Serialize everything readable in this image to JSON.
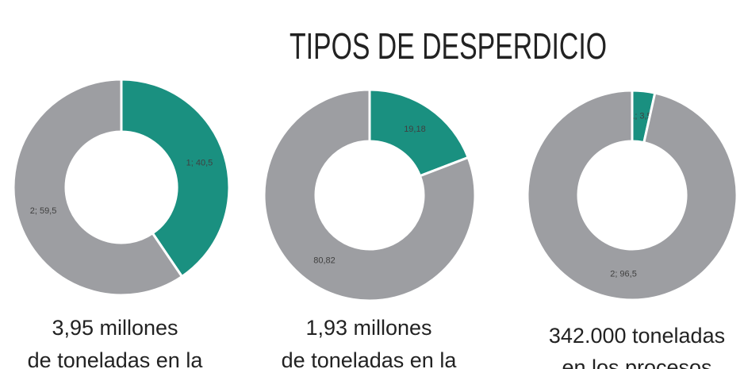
{
  "title": "TIPOS DE DESPERDICIO",
  "chart_data": [
    {
      "type": "donut",
      "categories": [
        "1",
        "2"
      ],
      "values": [
        40.5,
        59.5
      ],
      "value_labels": [
        "1; 40,5",
        "2; 59,5"
      ],
      "colors": [
        "#1a9080",
        "#9d9ea2"
      ],
      "caption": [
        "3,95 millones",
        "de toneladas en la"
      ]
    },
    {
      "type": "donut",
      "values": [
        19.18,
        80.82
      ],
      "value_labels": [
        "19,18",
        "80,82"
      ],
      "colors": [
        "#1a9080",
        "#9d9ea2"
      ],
      "caption": [
        "1,93 millones",
        "de toneladas en la"
      ]
    },
    {
      "type": "donut",
      "categories": [
        "1",
        "2"
      ],
      "values": [
        3.5,
        96.5
      ],
      "value_labels": [
        "1; 3,5",
        "2; 96,5"
      ],
      "colors": [
        "#1a9080",
        "#9d9ea2"
      ],
      "caption": [
        "342.000  toneladas",
        "en los procesos"
      ]
    }
  ]
}
